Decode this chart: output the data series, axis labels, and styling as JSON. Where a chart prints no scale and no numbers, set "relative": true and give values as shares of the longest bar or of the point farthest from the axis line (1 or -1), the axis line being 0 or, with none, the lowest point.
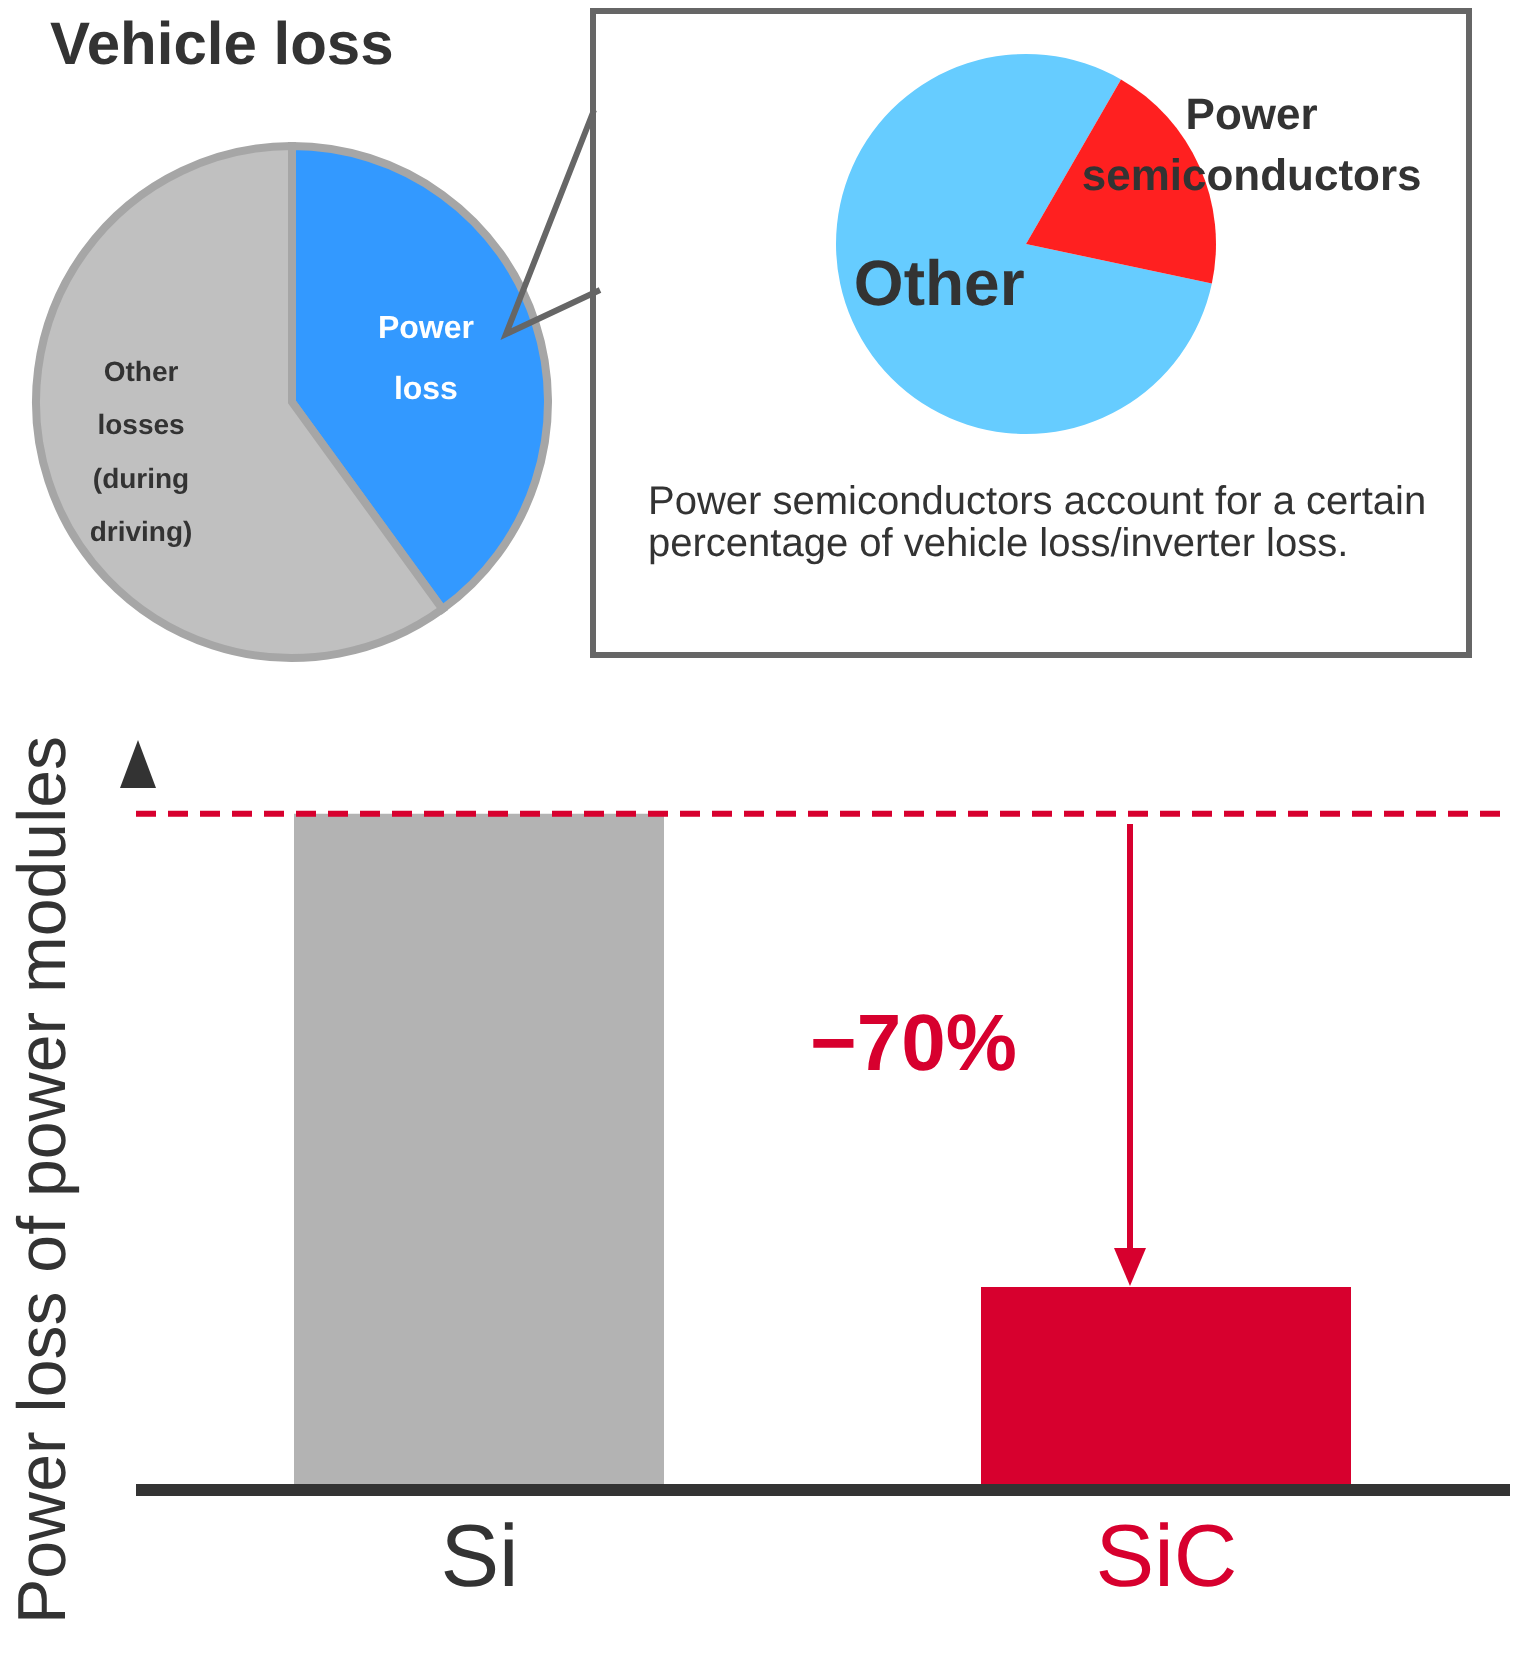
{
  "chart_data": [
    {
      "type": "pie",
      "title": "Vehicle loss",
      "categories": [
        "Power loss",
        "Other losses (during driving)"
      ],
      "values": [
        40,
        60
      ],
      "colors": [
        "#3399ff",
        "#c0c0c0"
      ]
    },
    {
      "type": "pie",
      "categories": [
        "Other",
        "Power semiconductors"
      ],
      "values": [
        80,
        20
      ],
      "colors": [
        "#66ccff",
        "#ff2020"
      ],
      "annotations": [
        "Power semiconductors account for a certain percentage of vehicle loss/inverter loss."
      ]
    },
    {
      "type": "bar",
      "categories": [
        "Si",
        "SiC"
      ],
      "values": [
        1,
        0.3
      ],
      "colors": [
        "#b3b3b3",
        "#d7002e"
      ],
      "relative": true,
      "ylabel": "Power loss of power modules",
      "ref_lines": [
        {
          "axis": "y",
          "value": 1,
          "color": "#d7002e",
          "line_style": "dashed"
        }
      ],
      "annotations": [
        "−70%"
      ]
    }
  ]
}
